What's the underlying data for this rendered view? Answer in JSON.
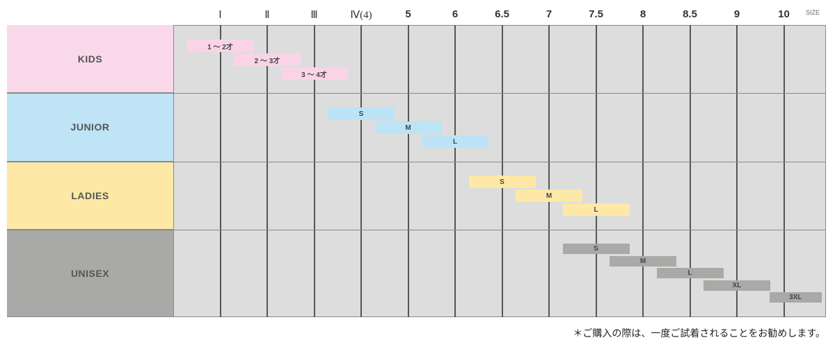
{
  "chart_data": {
    "type": "bar",
    "orientation": "horizontal-range",
    "x_ticks": [
      "Ⅰ",
      "Ⅱ",
      "Ⅲ",
      "Ⅳ(4)",
      "5",
      "6",
      "6.5",
      "7",
      "7.5",
      "8",
      "8.5",
      "9",
      "10"
    ],
    "x_axis_label": "SIZE",
    "grid": true,
    "groups": [
      {
        "name": "KIDS",
        "color": "#f9d9e9",
        "bar_color": "#fad4e6",
        "bars": [
          {
            "label": "1 ～ 2才",
            "center": "Ⅰ"
          },
          {
            "label": "2 ～ 3才",
            "center": "Ⅱ"
          },
          {
            "label": "3 ～ 4才",
            "center": "Ⅲ"
          }
        ]
      },
      {
        "name": "JUNIOR",
        "color": "#bee4f6",
        "bar_color": "#bde3f6",
        "bars": [
          {
            "label": "S",
            "center": "Ⅳ(4)"
          },
          {
            "label": "M",
            "center": "5"
          },
          {
            "label": "L",
            "center": "6"
          }
        ]
      },
      {
        "name": "LADIES",
        "color": "#fde8a6",
        "bar_color": "#fde8a6",
        "bars": [
          {
            "label": "S",
            "center": "6.5"
          },
          {
            "label": "M",
            "center": "7"
          },
          {
            "label": "L",
            "center": "7.5"
          }
        ]
      },
      {
        "name": "UNISEX",
        "color": "#a9aaa8",
        "bar_color": "#a9a9a7",
        "bars": [
          {
            "label": "S",
            "center": "7.5"
          },
          {
            "label": "M",
            "center": "8"
          },
          {
            "label": "L",
            "center": "8.5"
          },
          {
            "label": "XL",
            "center": "9"
          },
          {
            "label": "3XL",
            "center": "10"
          }
        ]
      }
    ]
  },
  "note": "＊ご購入の際は、一度ご試着されることをお勧めします。"
}
